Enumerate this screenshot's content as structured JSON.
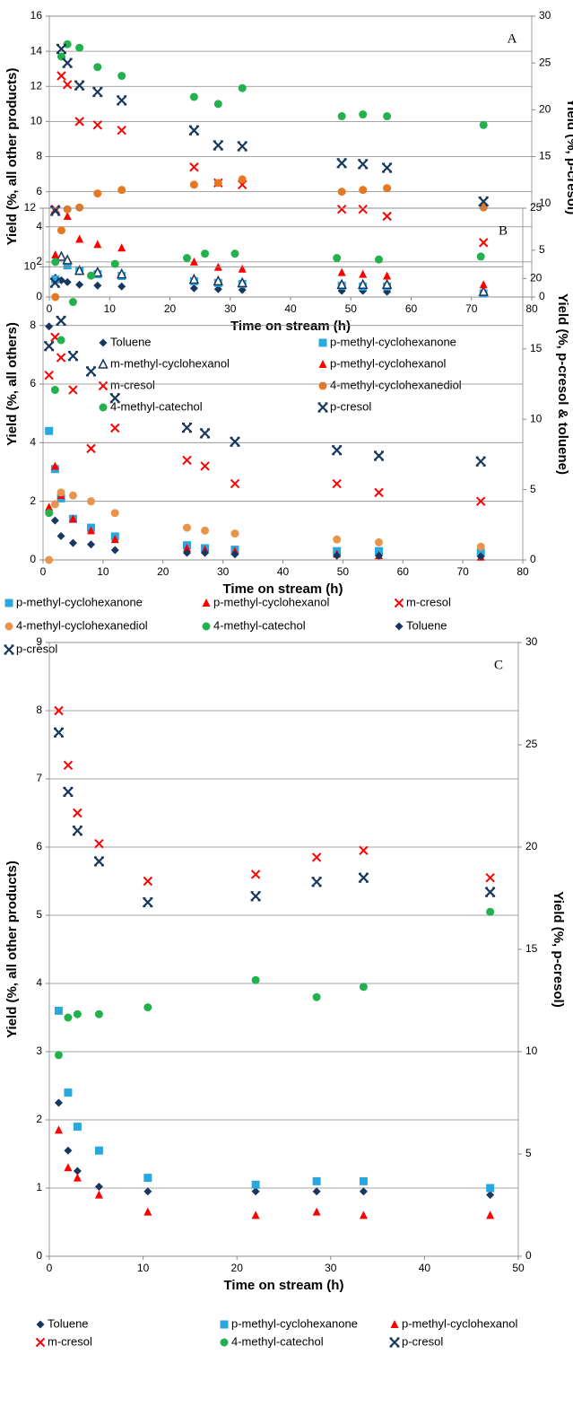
{
  "chart_data": [
    {
      "type": "scatter",
      "annotation": "A",
      "xlabel": "Time on stream (h)",
      "ylabel": "Yield (%, all other products)",
      "y2label": "Yield (%, p-cresol)",
      "xlim": [
        0,
        80
      ],
      "xticks": [
        0,
        10,
        20,
        30,
        40,
        50,
        60,
        70,
        80
      ],
      "ylim": [
        0,
        16
      ],
      "yticks": [
        0,
        2,
        4,
        6,
        8,
        10,
        12,
        14,
        16
      ],
      "y2lim": [
        0,
        30
      ],
      "y2ticks": [
        0,
        5,
        10,
        15,
        20,
        25,
        30
      ],
      "grid": true,
      "x": [
        1,
        2,
        3,
        5,
        8,
        12,
        24,
        28,
        32,
        48.5,
        52,
        56,
        72
      ],
      "series": [
        {
          "name": "Toluene",
          "color": "#17375e",
          "marker": "diamond",
          "values": [
            1.1,
            0.95,
            0.85,
            0.7,
            0.65,
            0.6,
            0.5,
            0.45,
            0.4,
            0.35,
            0.35,
            0.3,
            0.3
          ]
        },
        {
          "name": "p-methyl-cyclohexanone",
          "color": "#29a8e0",
          "marker": "square",
          "values": [
            1.0,
            null,
            1.8,
            1.5,
            1.3,
            1.2,
            0.9,
            0.8,
            0.75,
            0.65,
            0.6,
            0.6,
            0.2
          ]
        },
        {
          "name": "m-methyl-cyclohexanol",
          "color": "#17375e",
          "marker": "open-triangle",
          "values": [
            null,
            2.3,
            2.1,
            1.5,
            1.4,
            1.3,
            1.0,
            0.9,
            0.8,
            0.7,
            0.7,
            0.7,
            0.3
          ]
        },
        {
          "name": "p-methyl-cyclohexanol",
          "color": "#ff0000",
          "marker": "triangle",
          "values": [
            2.4,
            null,
            4.6,
            3.3,
            3.0,
            2.8,
            2.0,
            1.7,
            1.6,
            1.4,
            1.3,
            1.2,
            0.7
          ]
        },
        {
          "name": "m-cresol",
          "color": "#ff0000",
          "marker": "x",
          "values": [
            5.0,
            12.6,
            12.1,
            10.0,
            9.8,
            9.5,
            7.4,
            6.5,
            6.4,
            5.0,
            5.0,
            4.6,
            3.1
          ]
        },
        {
          "name": "4-methyl-cyclohexanediol",
          "color": "#e87722",
          "marker": "circle",
          "values": [
            0,
            3.8,
            5.0,
            5.1,
            5.9,
            6.1,
            6.4,
            6.5,
            6.7,
            6.0,
            6.1,
            6.2,
            5.1
          ]
        },
        {
          "name": "4-methyl-catechol",
          "color": "#22b14c",
          "marker": "circle",
          "values": [
            2.0,
            13.7,
            14.4,
            14.2,
            13.1,
            12.6,
            11.4,
            11.0,
            11.9,
            10.3,
            10.4,
            10.3,
            9.8
          ]
        },
        {
          "name": "p-cresol",
          "color": "#17375e",
          "marker": "star",
          "axis": "y2",
          "values": [
            9.2,
            26.5,
            25.0,
            22.6,
            21.9,
            21.0,
            17.8,
            16.2,
            16.1,
            14.3,
            14.2,
            13.8,
            10.2
          ]
        }
      ]
    },
    {
      "type": "scatter",
      "annotation": "B",
      "xlabel": "Time on stream (h)",
      "ylabel": "Yield (%, all others)",
      "y2label": "Yield (%, p-cresol & toluene)",
      "xlim": [
        0,
        80
      ],
      "xticks": [
        0,
        10,
        20,
        30,
        40,
        50,
        60,
        70,
        80
      ],
      "ylim": [
        0,
        12
      ],
      "yticks": [
        0,
        2,
        4,
        6,
        8,
        10,
        12
      ],
      "y2lim": [
        0,
        25
      ],
      "y2ticks": [
        0,
        5,
        10,
        15,
        20,
        25
      ],
      "grid": true,
      "x": [
        1,
        2,
        3,
        5,
        8,
        12,
        24,
        27,
        32,
        49,
        56,
        73
      ],
      "series": [
        {
          "name": "p-methyl-cyclohexanone",
          "color": "#29a8e0",
          "marker": "square",
          "values": [
            4.4,
            3.1,
            2.1,
            1.4,
            1.1,
            0.8,
            0.5,
            0.4,
            0.35,
            0.3,
            0.3,
            0.25
          ]
        },
        {
          "name": "p-methyl-cyclohexanol",
          "color": "#ff0000",
          "marker": "triangle",
          "values": [
            1.8,
            3.2,
            2.2,
            1.4,
            1.0,
            0.7,
            0.4,
            0.35,
            0.3,
            0.2,
            0.15,
            0.1
          ]
        },
        {
          "name": "m-cresol",
          "color": "#ff0000",
          "marker": "x",
          "values": [
            6.3,
            7.6,
            6.9,
            5.8,
            3.8,
            4.5,
            3.4,
            3.2,
            2.6,
            2.6,
            2.3,
            2.0
          ]
        },
        {
          "name": "4-methyl-cyclohexanediol",
          "color": "#e8944a",
          "marker": "circle",
          "values": [
            0,
            1.9,
            2.3,
            2.2,
            2.0,
            1.6,
            1.1,
            1.0,
            0.9,
            0.7,
            0.6,
            0.45
          ]
        },
        {
          "name": "4-methyl-catechol",
          "color": "#22b14c",
          "marker": "circle",
          "values": [
            1.6,
            5.8,
            7.5,
            8.8,
            9.7,
            10.1,
            10.3,
            10.45,
            10.45,
            10.3,
            10.25,
            10.35
          ]
        },
        {
          "name": "Toluene",
          "color": "#17375e",
          "marker": "diamond",
          "axis": "y2",
          "values": [
            16.6,
            2.8,
            1.7,
            1.2,
            1.1,
            0.7,
            0.5,
            0.5,
            0.4,
            0.3,
            0.3,
            0.25
          ]
        },
        {
          "name": "p-cresol",
          "color": "#17375e",
          "marker": "star",
          "axis": "y2",
          "values": [
            15.2,
            19.7,
            17.0,
            14.5,
            13.4,
            11.5,
            9.4,
            9.0,
            8.4,
            7.8,
            7.4,
            7.0
          ]
        }
      ]
    },
    {
      "type": "scatter",
      "annotation": "C",
      "xlabel": "Time on stream (h)",
      "ylabel": "Yield (%, all other products)",
      "y2label": "Yield (%, p-cresol)",
      "xlim": [
        0,
        50
      ],
      "xticks": [
        0,
        10,
        20,
        30,
        40,
        50
      ],
      "ylim": [
        0,
        9
      ],
      "yticks": [
        0,
        1,
        2,
        3,
        4,
        5,
        6,
        7,
        8,
        9
      ],
      "y2lim": [
        0,
        30
      ],
      "y2ticks": [
        0,
        5,
        10,
        15,
        20,
        25,
        30
      ],
      "grid": true,
      "x": [
        1,
        2,
        3,
        5.3,
        10.5,
        22,
        28.5,
        33.5,
        47
      ],
      "series": [
        {
          "name": "Toluene",
          "color": "#17375e",
          "marker": "diamond",
          "values": [
            2.25,
            1.55,
            1.25,
            1.02,
            0.95,
            0.95,
            0.95,
            0.95,
            0.9
          ]
        },
        {
          "name": "p-methyl-cyclohexanone",
          "color": "#29a8e0",
          "marker": "square",
          "values": [
            3.6,
            2.4,
            1.9,
            1.55,
            1.15,
            1.05,
            1.1,
            1.1,
            1.0
          ]
        },
        {
          "name": "p-methyl-cyclohexanol",
          "color": "#ff0000",
          "marker": "triangle",
          "values": [
            1.85,
            1.3,
            1.15,
            0.9,
            0.65,
            0.6,
            0.65,
            0.6,
            0.6
          ]
        },
        {
          "name": "m-cresol",
          "color": "#ff0000",
          "marker": "x",
          "values": [
            8.0,
            7.2,
            6.5,
            6.05,
            5.5,
            5.6,
            5.85,
            5.95,
            5.55
          ]
        },
        {
          "name": "4-methyl-catechol",
          "color": "#22b14c",
          "marker": "circle",
          "values": [
            2.95,
            3.5,
            3.55,
            3.55,
            3.65,
            4.05,
            3.8,
            3.95,
            5.05
          ]
        },
        {
          "name": "p-cresol",
          "color": "#17375e",
          "marker": "star",
          "axis": "y2",
          "values": [
            25.6,
            22.7,
            20.8,
            19.3,
            17.3,
            17.6,
            18.3,
            18.5,
            17.8
          ]
        }
      ]
    }
  ]
}
